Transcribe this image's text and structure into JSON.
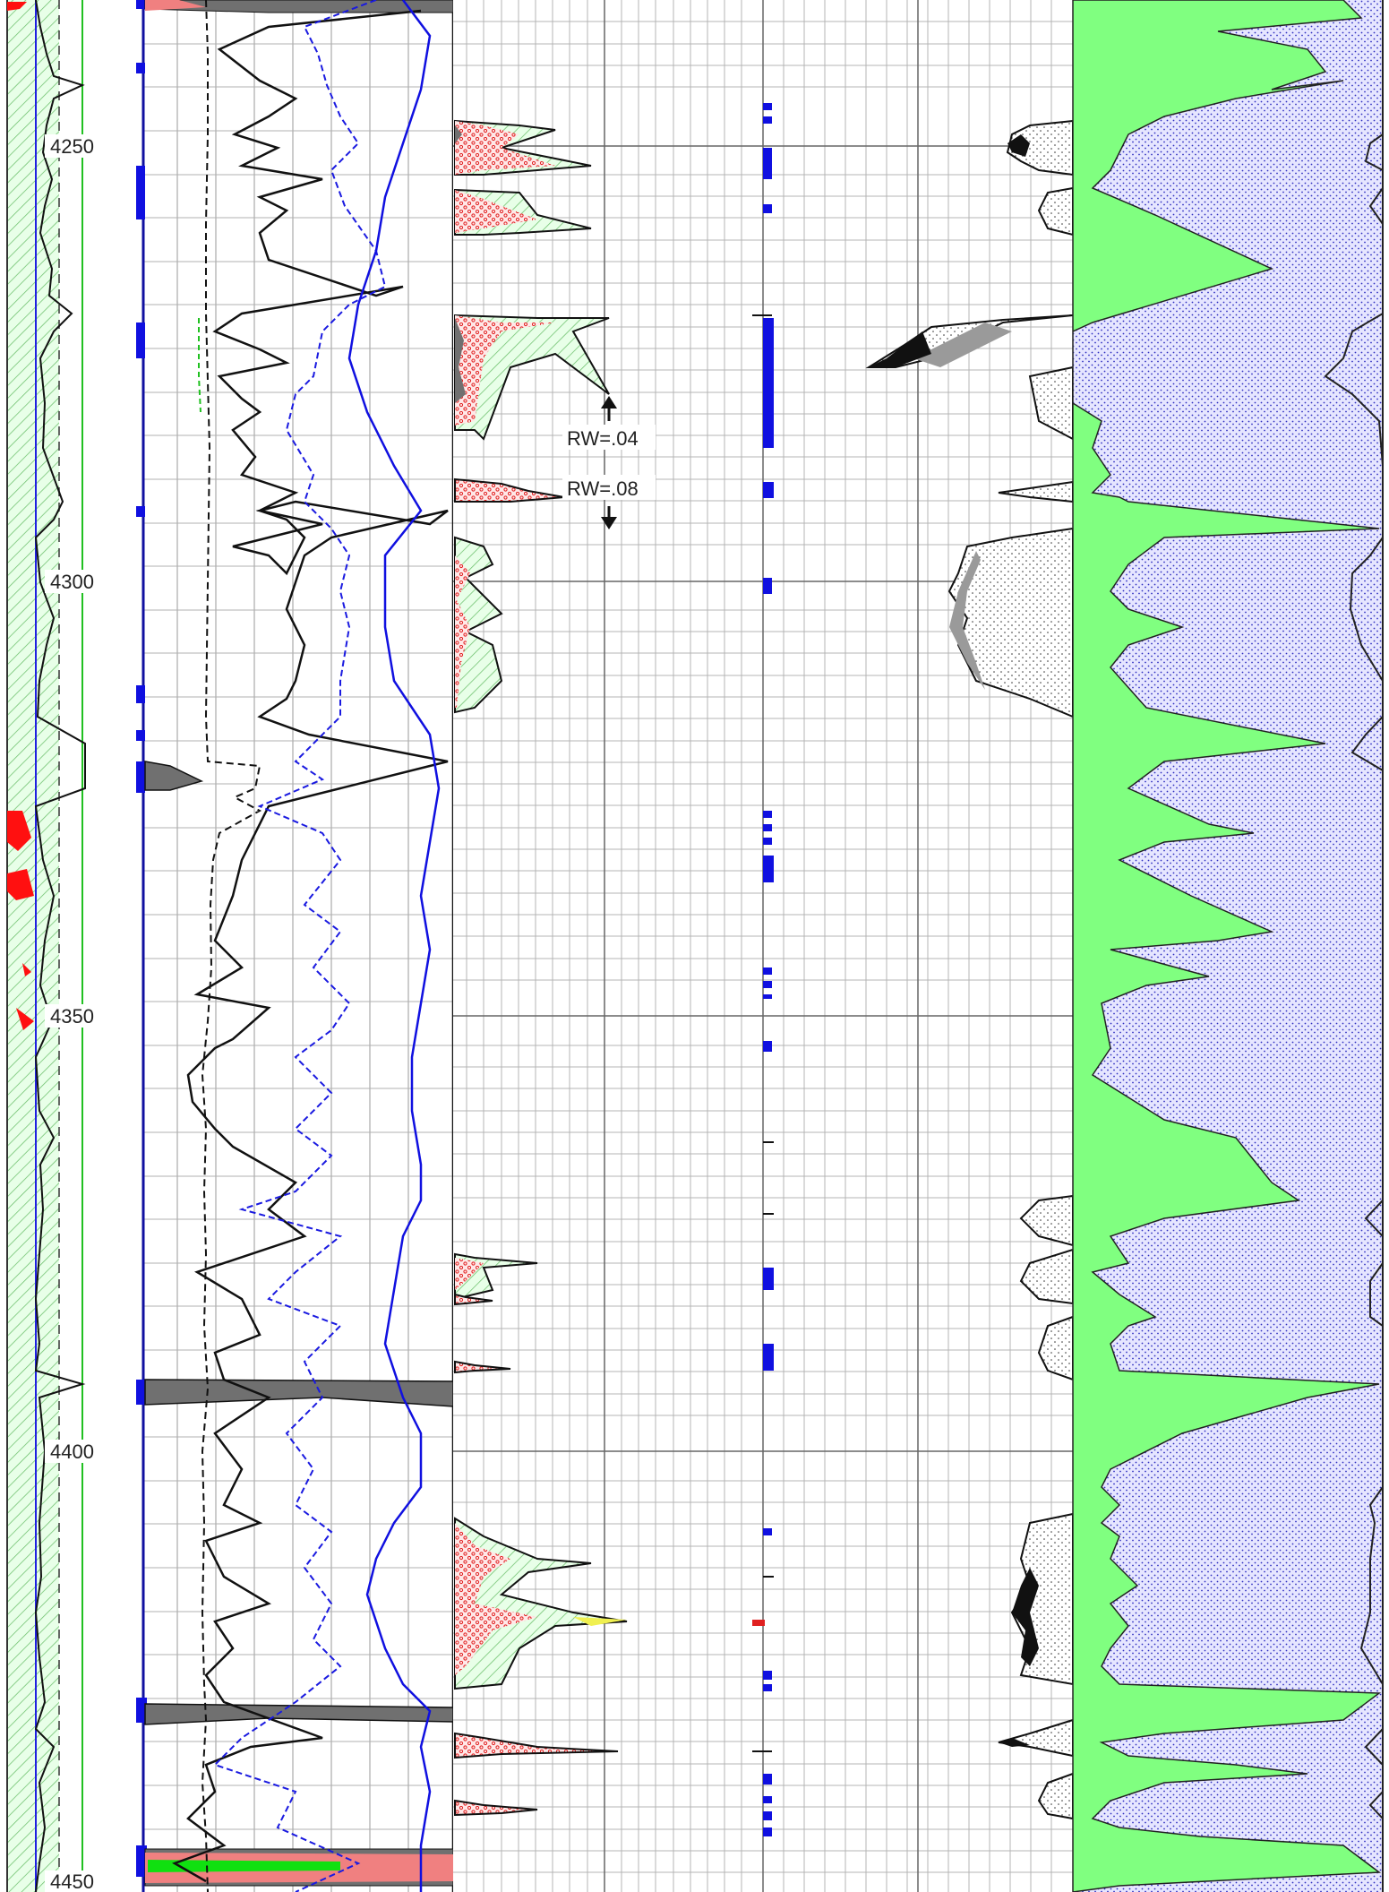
{
  "depth_track": {
    "labels": [
      "4250",
      "4300",
      "4350",
      "4400",
      "4450"
    ]
  },
  "annotations": {
    "rw_upper": "RW=.04",
    "rw_lower": "RW=.08"
  },
  "colors": {
    "grid": "#9a9a9a",
    "grid_major": "#555555",
    "green_fill": "#80ff80",
    "blue_dots": "#3030c0",
    "red": "#ff2020",
    "pink": "#f08080",
    "blue_curve": "#1010e0",
    "flag_blue": "#1010e0"
  }
}
